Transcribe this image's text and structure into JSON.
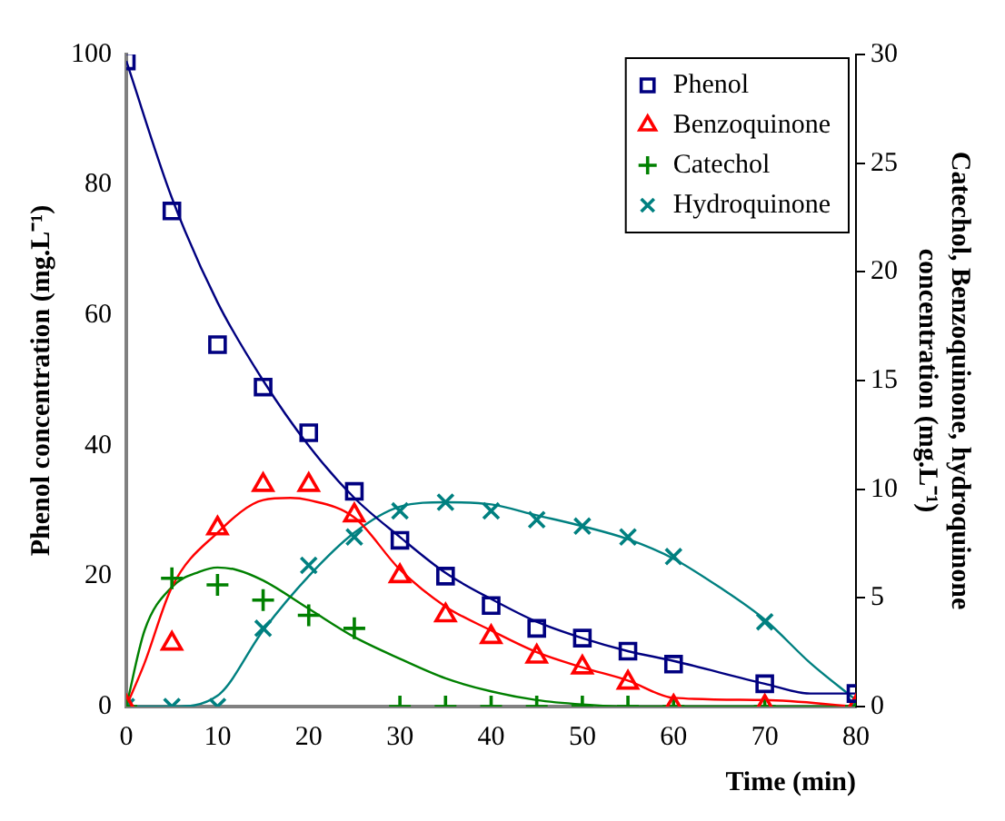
{
  "chart_data": {
    "type": "scatter",
    "xlabel": "Time (min)",
    "ylabel": "Phenol concentration (mg.L⁻¹)",
    "y2label": "Catechol, Benzoquinone, hydroquinone concentration (mg.L⁻¹)",
    "x": [
      0,
      5,
      10,
      15,
      20,
      25,
      30,
      35,
      40,
      45,
      50,
      55,
      60,
      70,
      80
    ],
    "xlim": [
      0,
      80
    ],
    "xticks": [
      0,
      10,
      20,
      30,
      40,
      50,
      60,
      70,
      80
    ],
    "ylim": [
      0,
      100
    ],
    "yticks": [
      0,
      20,
      40,
      60,
      80,
      100
    ],
    "y2lim": [
      0,
      30
    ],
    "y2ticks": [
      0,
      5,
      10,
      15,
      20,
      25,
      30
    ],
    "grid": false,
    "legend": "top right",
    "series": [
      {
        "name": "Phenol",
        "color": "#000080",
        "marker": "square",
        "values": [
          99,
          76,
          55.5,
          49,
          42,
          33,
          25.5,
          20,
          15.5,
          12,
          10.5,
          8.5,
          6.5,
          3.5,
          2
        ]
      },
      {
        "name": "Benzoquinone",
        "color": "#ff0000",
        "marker": "triangle",
        "axis": "y2",
        "values": [
          0,
          2.9,
          8.2,
          10.2,
          10.2,
          8.8,
          6,
          4.2,
          3.2,
          2.3,
          1.8,
          1.1,
          0,
          0,
          0
        ]
      },
      {
        "name": "Catechol",
        "color": "#008000",
        "marker": "plus",
        "axis": "y2",
        "values": [
          0,
          5.9,
          5.6,
          4.9,
          4.2,
          3.6,
          0,
          0,
          0,
          0,
          0,
          0,
          0,
          0,
          0
        ]
      },
      {
        "name": "Hydroquinone",
        "color": "#008080",
        "marker": "cross",
        "axis": "y2",
        "values": [
          0,
          0,
          0,
          3.6,
          6.5,
          7.8,
          9,
          9.4,
          9,
          8.6,
          8.3,
          7.8,
          6.9,
          3.9,
          0
        ]
      },
      {
        "type": "line",
        "color": "#000080",
        "marker": "none",
        "x": [
          0,
          5,
          10,
          15,
          20,
          25,
          30,
          35,
          40,
          45,
          50,
          55,
          60,
          70,
          75,
          80
        ],
        "values": [
          99,
          78,
          62,
          50,
          40,
          32,
          26,
          20.5,
          16.5,
          13,
          10.5,
          8.5,
          7,
          3.5,
          2,
          2
        ]
      },
      {
        "type": "line",
        "color": "#ff0000",
        "marker": "none",
        "axis": "y2",
        "x": [
          0,
          2,
          5,
          10,
          15,
          18,
          20,
          25,
          30,
          35,
          40,
          45,
          50,
          55,
          60,
          70,
          80
        ],
        "values": [
          0,
          2,
          5.5,
          8,
          9.5,
          9.6,
          9.5,
          8.7,
          6.3,
          4.6,
          3.5,
          2.5,
          1.8,
          1.2,
          0.4,
          0.3,
          0
        ]
      },
      {
        "type": "line",
        "color": "#008000",
        "marker": "none",
        "axis": "y2",
        "x": [
          0,
          2,
          5,
          8,
          10,
          12,
          15,
          20,
          25,
          30,
          35,
          40,
          45,
          50,
          55,
          80
        ],
        "values": [
          0,
          3.5,
          5.5,
          6.2,
          6.4,
          6.3,
          5.8,
          4.5,
          3.2,
          2.2,
          1.3,
          0.7,
          0.3,
          0.1,
          0,
          0
        ]
      },
      {
        "type": "line",
        "color": "#008080",
        "marker": "none",
        "axis": "y2",
        "x": [
          0,
          5,
          10,
          15,
          20,
          25,
          30,
          35,
          40,
          45,
          50,
          55,
          60,
          65,
          70,
          75,
          80
        ],
        "values": [
          0,
          0,
          0.5,
          3.5,
          6,
          8,
          9.2,
          9.4,
          9.3,
          8.8,
          8.3,
          7.7,
          6.8,
          5.5,
          4,
          2,
          0.3
        ]
      }
    ]
  }
}
